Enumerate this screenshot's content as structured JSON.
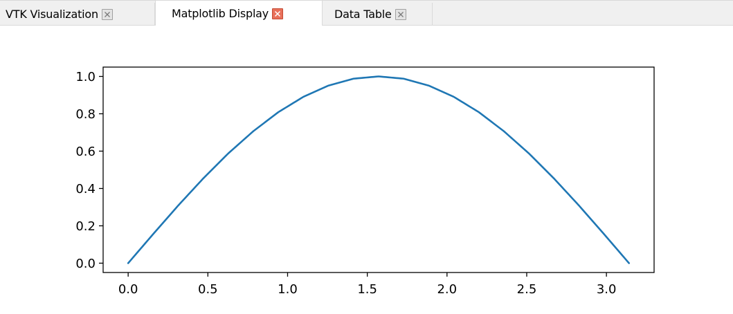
{
  "tabs": [
    {
      "label": "VTK Visualization",
      "active": false
    },
    {
      "label": "Matplotlib Display",
      "active": true
    },
    {
      "label": "Data Table",
      "active": false
    }
  ],
  "colors": {
    "line": "#1f77b4",
    "active_close": "#e8705a",
    "inactive_close": "#e3e3e3"
  },
  "icons": {
    "tab_close": "close-icon"
  },
  "chart_data": {
    "type": "line",
    "title": "",
    "xlabel": "",
    "ylabel": "",
    "xlim": [
      -0.157,
      3.299
    ],
    "ylim": [
      -0.05,
      1.05
    ],
    "xticks": [
      0.0,
      0.5,
      1.0,
      1.5,
      2.0,
      2.5,
      3.0
    ],
    "xtick_labels": [
      "0.0",
      "0.5",
      "1.0",
      "1.5",
      "2.0",
      "2.5",
      "3.0"
    ],
    "yticks": [
      0.0,
      0.2,
      0.4,
      0.6,
      0.8,
      1.0
    ],
    "ytick_labels": [
      "0.0",
      "0.2",
      "0.4",
      "0.6",
      "0.8",
      "1.0"
    ],
    "grid": false,
    "series": [
      {
        "x": [
          0.0,
          0.1571,
          0.3142,
          0.4712,
          0.6283,
          0.7854,
          0.9425,
          1.0996,
          1.2566,
          1.4137,
          1.5708,
          1.7279,
          1.885,
          2.042,
          2.1991,
          2.3562,
          2.5133,
          2.6704,
          2.8274,
          2.9845,
          3.1416
        ],
        "y": [
          0.0,
          0.156,
          0.309,
          0.454,
          0.588,
          0.707,
          0.809,
          0.891,
          0.951,
          0.988,
          1.0,
          0.988,
          0.951,
          0.891,
          0.809,
          0.707,
          0.588,
          0.454,
          0.309,
          0.156,
          0.0
        ]
      }
    ]
  }
}
